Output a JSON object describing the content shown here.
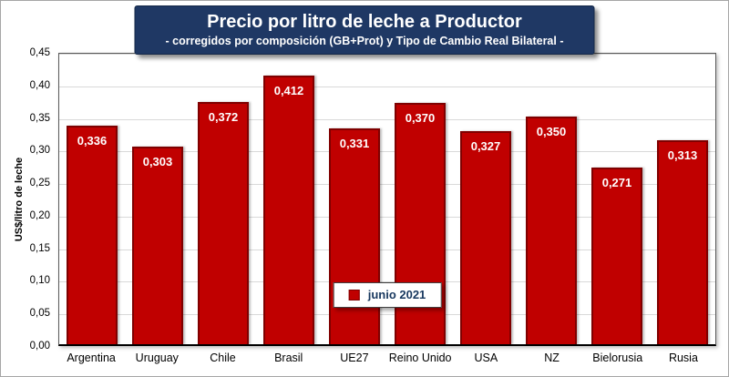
{
  "chart_data": {
    "type": "bar",
    "title": "Precio por litro de leche a Productor",
    "subtitle": "- corregidos por composición (GB+Prot) y Tipo de Cambio Real Bilateral -",
    "categories": [
      "Argentina",
      "Uruguay",
      "Chile",
      "Brasil",
      "UE27",
      "Reino Unido",
      "USA",
      "NZ",
      "Bielorusia",
      "Rusia"
    ],
    "values": [
      0.336,
      0.303,
      0.372,
      0.412,
      0.331,
      0.37,
      0.327,
      0.35,
      0.271,
      0.313
    ],
    "value_labels": [
      "0,336",
      "0,303",
      "0,372",
      "0,412",
      "0,331",
      "0,370",
      "0,327",
      "0,350",
      "0,271",
      "0,313"
    ],
    "xlabel": "",
    "ylabel": "US$/litro de leche",
    "ylim": [
      0,
      0.45
    ],
    "ytick_step": 0.05,
    "ytick_labels": [
      "0,00",
      "0,05",
      "0,10",
      "0,15",
      "0,20",
      "0,25",
      "0,30",
      "0,35",
      "0,40",
      "0,45"
    ],
    "grid": true,
    "legend": {
      "label": "junio 2021",
      "position": "bottom-center-inside"
    },
    "colors": {
      "bar_fill": "#C00000",
      "bar_border": "#7F0000",
      "title_bg": "#1F3864",
      "title_text": "#FFFFFF",
      "grid": "#D9D9D9"
    }
  }
}
